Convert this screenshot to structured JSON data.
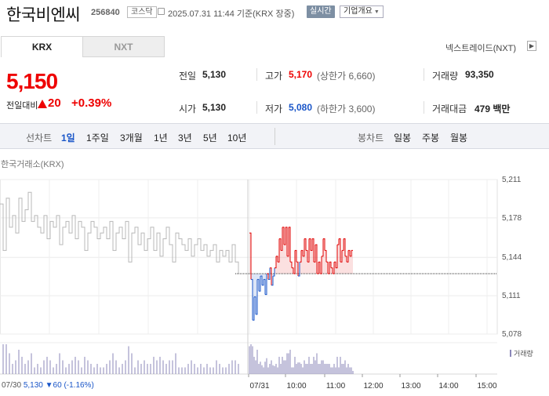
{
  "header": {
    "stock_name": "한국비엔씨",
    "stock_code": "256840",
    "market_badge": "코스닥",
    "datetime": "2025.07.31 11:44 기준(KRX 장중)",
    "realtime_button": "실시간",
    "company_info_button": "기업개요"
  },
  "tabs": {
    "krx": "KRX",
    "nxt": "NXT",
    "nxt_link": "넥스트레이드(NXT)"
  },
  "price": {
    "current": "5,150",
    "change_label": "전일대비",
    "change": "20",
    "change_percent": "+0.39%"
  },
  "stats": {
    "prev_label": "전일",
    "prev_value": "5,130",
    "open_label": "시가",
    "open_value": "5,130",
    "high_label": "고가",
    "high_value": "5,170",
    "upper_limit": "(상한가 6,660)",
    "low_label": "저가",
    "low_value": "5,080",
    "lower_limit": "(하한가 3,600)",
    "volume_label": "거래량",
    "volume_value": "93,350",
    "amount_label": "거래대금",
    "amount_value": "479 백만"
  },
  "period_bar": {
    "line_chart_label": "선차트",
    "line_periods": [
      "1일",
      "1주일",
      "3개월",
      "1년",
      "3년",
      "5년",
      "10년"
    ],
    "selected_period": "1일",
    "candle_chart_label": "봉차트",
    "candle_periods": [
      "일봉",
      "주봉",
      "월봉"
    ]
  },
  "chart_source_label": "한국거래소(KRX)",
  "volume_legend": "거래량",
  "footer": {
    "prev_date": "07/30",
    "prev_close": "5,130",
    "prev_change": "▼60",
    "prev_change_pct": "(-1.16%)"
  },
  "colors": {
    "up": "#e00000",
    "down": "#1955c8",
    "previous_day_line": "#b8b8b8",
    "volume_bar": "#8b87b8"
  },
  "chart_data": {
    "type": "line",
    "ylim": [
      5078,
      5211
    ],
    "y_ticks": [
      "5,211",
      "5,178",
      "5,144",
      "5,111",
      "5,078"
    ],
    "y_tick_values": [
      5211,
      5178,
      5144,
      5111,
      5078
    ],
    "x_ticks": [
      "07/31",
      "10:00",
      "11:00",
      "12:00",
      "13:00",
      "14:00",
      "15:00"
    ],
    "x_prev_tick": "07/30",
    "baseline": 5130,
    "series": [
      {
        "name": "07/30",
        "x": [
          0,
          4,
          8,
          12,
          16,
          20,
          24,
          28,
          32,
          36,
          40,
          44,
          48,
          52,
          56,
          60,
          64,
          68,
          72,
          76,
          80,
          84,
          88,
          92,
          96,
          100,
          104,
          108,
          112,
          116,
          120,
          124,
          128,
          132,
          136,
          140,
          144,
          148,
          152,
          156,
          160,
          164,
          168,
          172,
          176,
          180,
          184,
          188,
          192,
          196,
          200,
          204,
          208,
          212,
          216,
          220,
          224,
          228,
          232,
          236,
          240,
          244,
          248,
          252,
          256,
          260,
          264,
          268,
          272,
          276,
          280,
          284,
          288,
          292,
          296,
          300,
          304
        ],
        "values": [
          5190,
          5150,
          5195,
          5170,
          5180,
          5165,
          5195,
          5175,
          5185,
          5200,
          5175,
          5180,
          5170,
          5165,
          5180,
          5160,
          5175,
          5170,
          5180,
          5155,
          5170,
          5175,
          5165,
          5180,
          5160,
          5175,
          5170,
          5150,
          5165,
          5175,
          5170,
          5160,
          5165,
          5170,
          5160,
          5175,
          5150,
          5165,
          5170,
          5160,
          5175,
          5140,
          5165,
          5170,
          5155,
          5165,
          5150,
          5160,
          5170,
          5150,
          5165,
          5145,
          5160,
          5170,
          5155,
          5140,
          5165,
          5160,
          5155,
          5150,
          5160,
          5145,
          5155,
          5160,
          5150,
          5155,
          5145,
          5150,
          5155,
          5140,
          5150,
          5145,
          5150,
          5140,
          5155,
          5140,
          5130
        ]
      },
      {
        "name": "07/31",
        "x": [
          318,
          320,
          322,
          324,
          326,
          328,
          330,
          332,
          334,
          336,
          338,
          340,
          342,
          344,
          346,
          348,
          350,
          352,
          354,
          356,
          358,
          360,
          362,
          364,
          366,
          368,
          370,
          372,
          374,
          376,
          378,
          380,
          382,
          384,
          386,
          388,
          390,
          392,
          394,
          396,
          398,
          400,
          402,
          404,
          406,
          408,
          410,
          412,
          414,
          416,
          418,
          420,
          422,
          424,
          426,
          428,
          430,
          432,
          434,
          436,
          438,
          440,
          442,
          444,
          446,
          448,
          450
        ],
        "values": [
          5165,
          5125,
          5090,
          5110,
          5095,
          5125,
          5115,
          5128,
          5120,
          5125,
          5112,
          5130,
          5125,
          5135,
          5120,
          5128,
          5135,
          5145,
          5140,
          5160,
          5150,
          5170,
          5155,
          5170,
          5145,
          5170,
          5140,
          5135,
          5130,
          5150,
          5140,
          5128,
          5140,
          5150,
          5145,
          5160,
          5150,
          5140,
          5160,
          5150,
          5160,
          5140,
          5155,
          5130,
          5140,
          5130,
          5145,
          5160,
          5150,
          5140,
          5130,
          5140,
          5135,
          5130,
          5140,
          5135,
          5155,
          5160,
          5140,
          5150,
          5160,
          5145,
          5140,
          5150,
          5145,
          5150,
          5150
        ]
      }
    ]
  }
}
